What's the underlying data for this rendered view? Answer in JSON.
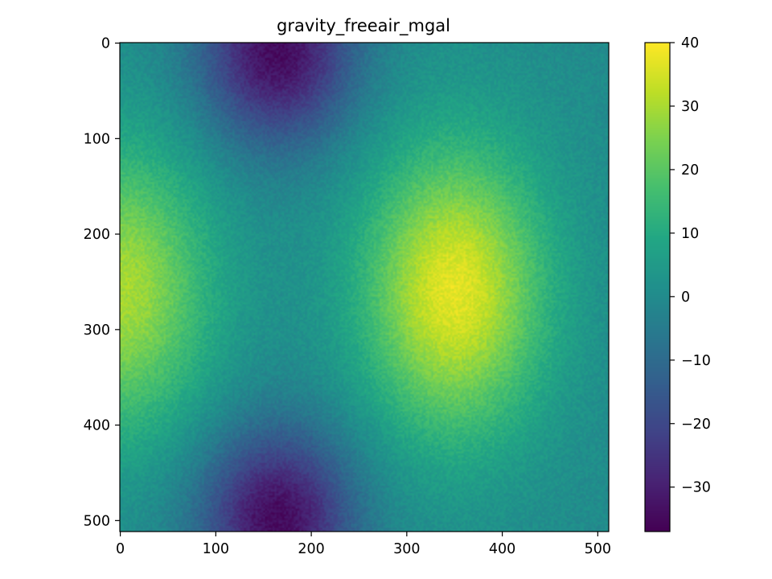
{
  "chart_data": {
    "type": "heatmap",
    "title": "gravity_freeair_mgal",
    "xlabel": "",
    "ylabel": "",
    "x_range": [
      0,
      511
    ],
    "y_range": [
      0,
      511
    ],
    "y_inverted": true,
    "x_ticks": [
      "0",
      "100",
      "200",
      "300",
      "400",
      "500"
    ],
    "y_ticks": [
      "0",
      "100",
      "200",
      "300",
      "400",
      "500"
    ],
    "colormap": "viridis",
    "colorbar": {
      "min": -37,
      "max": 40,
      "ticks": [
        "40",
        "30",
        "20",
        "10",
        "0",
        "−10",
        "−20",
        "−30"
      ],
      "tick_values": [
        40,
        30,
        20,
        10,
        0,
        -10,
        -20,
        -30
      ]
    },
    "field_features": [
      {
        "kind": "maximum",
        "x": 350,
        "y": 260,
        "value": 37
      },
      {
        "kind": "maximum",
        "x": 0,
        "y": 260,
        "value": 30
      },
      {
        "kind": "minimum",
        "x": 165,
        "y": 10,
        "value": -35
      },
      {
        "kind": "minimum",
        "x": 165,
        "y": 500,
        "value": -35
      }
    ],
    "grid": false,
    "noise": "fine speckle"
  }
}
